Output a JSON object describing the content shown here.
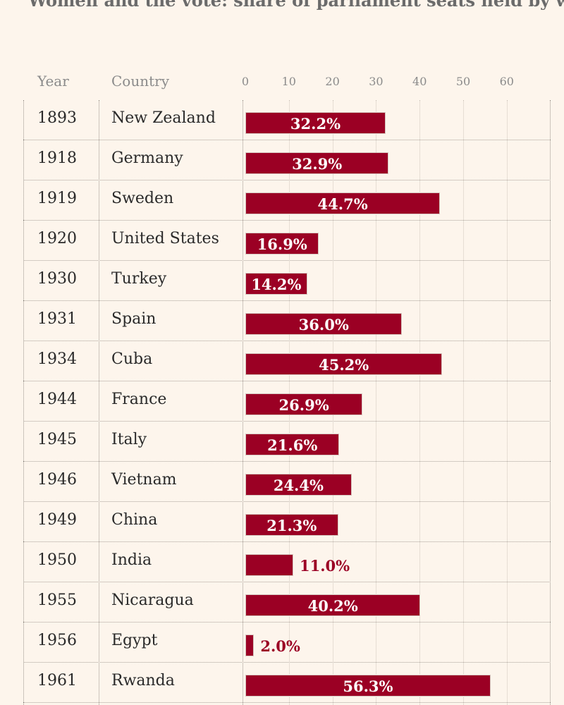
{
  "title": "Women and the vote: share of parliament seats held by women",
  "headers": {
    "year": "Year",
    "country": "Country"
  },
  "chart_data": {
    "type": "bar",
    "orientation": "horizontal",
    "xlim": [
      0,
      60
    ],
    "xticks": [
      0,
      10,
      20,
      30,
      40,
      50,
      60
    ],
    "grid": true,
    "rows": [
      {
        "year": "1893",
        "country": "New Zealand",
        "value": 32.2,
        "label": "32.2%"
      },
      {
        "year": "1918",
        "country": "Germany",
        "value": 32.9,
        "label": "32.9%"
      },
      {
        "year": "1919",
        "country": "Sweden",
        "value": 44.7,
        "label": "44.7%"
      },
      {
        "year": "1920",
        "country": "United States",
        "value": 16.9,
        "label": "16.9%"
      },
      {
        "year": "1930",
        "country": "Turkey",
        "value": 14.2,
        "label": "14.2%"
      },
      {
        "year": "1931",
        "country": "Spain",
        "value": 36.0,
        "label": "36.0%"
      },
      {
        "year": "1934",
        "country": "Cuba",
        "value": 45.2,
        "label": "45.2%"
      },
      {
        "year": "1944",
        "country": "France",
        "value": 26.9,
        "label": "26.9%"
      },
      {
        "year": "1945",
        "country": "Italy",
        "value": 21.6,
        "label": "21.6%"
      },
      {
        "year": "1946",
        "country": "Vietnam",
        "value": 24.4,
        "label": "24.4%"
      },
      {
        "year": "1949",
        "country": "China",
        "value": 21.3,
        "label": "21.3%"
      },
      {
        "year": "1950",
        "country": "India",
        "value": 11.0,
        "label": "11.0%"
      },
      {
        "year": "1955",
        "country": "Nicaragua",
        "value": 40.2,
        "label": "40.2%"
      },
      {
        "year": "1956",
        "country": "Egypt",
        "value": 2.0,
        "label": "2.0%"
      },
      {
        "year": "1961",
        "country": "Rwanda",
        "value": 56.3,
        "label": "56.3%"
      }
    ],
    "colors": {
      "bar": "#9b0024"
    }
  }
}
